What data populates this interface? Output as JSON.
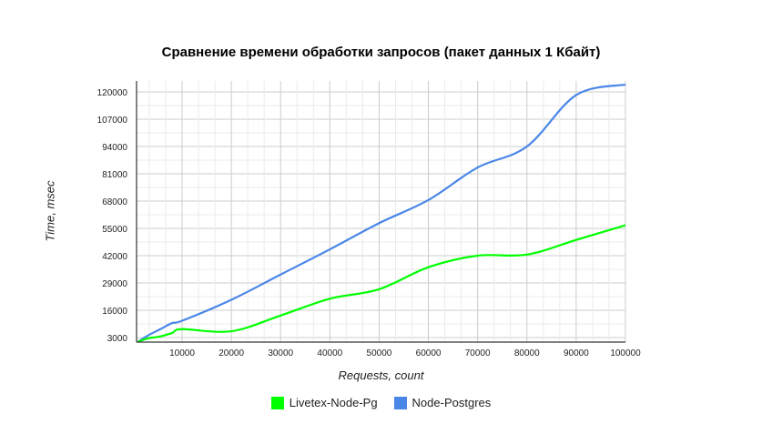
{
  "chart_data": {
    "type": "line",
    "title": "Сравнение времени обработки запросов (пакет данных 1 Кбайт)",
    "xlabel": "Requests, count",
    "ylabel": "Time, msec",
    "xlim": [
      760,
      100000
    ],
    "ylim": [
      833,
      125200
    ],
    "x_ticks": [
      10000,
      20000,
      30000,
      40000,
      50000,
      60000,
      70000,
      80000,
      90000,
      100000
    ],
    "y_ticks": [
      3000,
      16000,
      29000,
      42000,
      55000,
      68000,
      81000,
      94000,
      107000,
      120000
    ],
    "grid": true,
    "legend_position": "bottom",
    "x": [
      1000,
      3000,
      5500,
      8000,
      10000,
      20000,
      30000,
      40000,
      50000,
      60000,
      70000,
      80000,
      90000,
      100000
    ],
    "series": [
      {
        "name": "Livetex-Node-Pg",
        "color": "#00ff00",
        "values": [
          900,
          2600,
          3500,
          5200,
          7000,
          6000,
          13500,
          21500,
          26000,
          36500,
          42000,
          42500,
          49500,
          56500
        ]
      },
      {
        "name": "Node-Postgres",
        "color": "#4a86e8",
        "values": [
          900,
          3900,
          6900,
          9900,
          11000,
          21000,
          33000,
          45000,
          57500,
          68500,
          84000,
          94000,
          118500,
          123500
        ]
      }
    ]
  },
  "legend": {
    "items": [
      {
        "label": "Livetex-Node-Pg",
        "color": "#00ff00"
      },
      {
        "label": "Node-Postgres",
        "color": "#4a86e8"
      }
    ]
  }
}
